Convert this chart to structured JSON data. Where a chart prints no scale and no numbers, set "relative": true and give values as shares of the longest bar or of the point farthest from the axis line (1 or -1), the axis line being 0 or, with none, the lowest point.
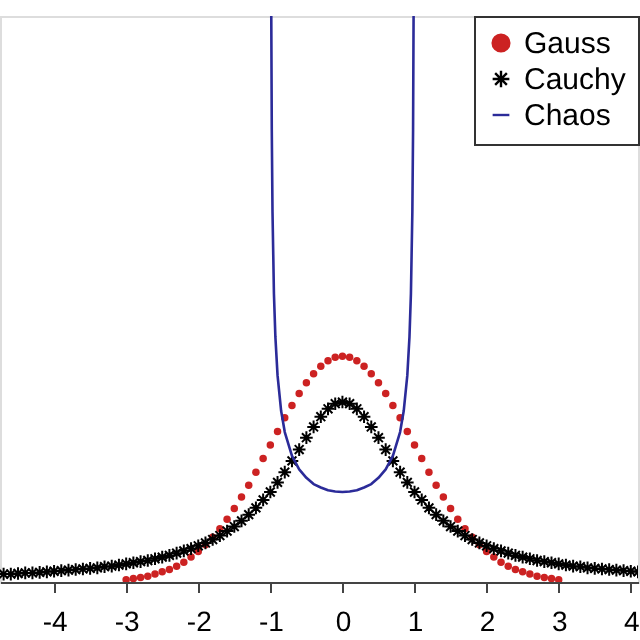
{
  "chart_data": {
    "type": "scatter",
    "relative": true,
    "xlim": [
      -4.75,
      4.1
    ],
    "xticks": [
      -4,
      -3,
      -2,
      -1,
      0,
      1,
      2,
      3,
      4
    ],
    "legend": "top right",
    "grid": false,
    "series": [
      {
        "name": "Gauss",
        "color": "#cc2222",
        "marker": "circle",
        "x": [
          -3.0,
          -2.9,
          -2.8,
          -2.7,
          -2.6,
          -2.5,
          -2.4,
          -2.3,
          -2.2,
          -2.1,
          -2.0,
          -1.9,
          -1.8,
          -1.7,
          -1.6,
          -1.5,
          -1.4,
          -1.3,
          -1.2,
          -1.1,
          -1.0,
          -0.9,
          -0.8,
          -0.7,
          -0.6,
          -0.5,
          -0.4,
          -0.3,
          -0.2,
          -0.1,
          0.0,
          0.1,
          0.2,
          0.3,
          0.4,
          0.5,
          0.6,
          0.7,
          0.8,
          0.9,
          1.0,
          1.1,
          1.2,
          1.3,
          1.4,
          1.5,
          1.6,
          1.7,
          1.8,
          1.9,
          2.0,
          2.1,
          2.2,
          2.3,
          2.4,
          2.5,
          2.6,
          2.7,
          2.8,
          2.9,
          3.0
        ],
        "values": [
          0.004,
          0.006,
          0.008,
          0.01,
          0.014,
          0.018,
          0.022,
          0.028,
          0.035,
          0.044,
          0.054,
          0.066,
          0.079,
          0.094,
          0.111,
          0.13,
          0.15,
          0.171,
          0.194,
          0.218,
          0.242,
          0.266,
          0.29,
          0.312,
          0.333,
          0.352,
          0.368,
          0.381,
          0.391,
          0.397,
          0.399,
          0.397,
          0.391,
          0.381,
          0.368,
          0.352,
          0.333,
          0.312,
          0.29,
          0.266,
          0.242,
          0.218,
          0.194,
          0.171,
          0.15,
          0.13,
          0.111,
          0.094,
          0.079,
          0.066,
          0.054,
          0.044,
          0.035,
          0.028,
          0.022,
          0.018,
          0.014,
          0.01,
          0.008,
          0.006,
          0.004
        ]
      },
      {
        "name": "Cauchy",
        "color": "#000000",
        "marker": "cross",
        "x": [
          -4.7,
          -4.6,
          -4.5,
          -4.4,
          -4.3,
          -4.2,
          -4.1,
          -4.0,
          -3.9,
          -3.8,
          -3.7,
          -3.6,
          -3.5,
          -3.4,
          -3.3,
          -3.2,
          -3.1,
          -3.0,
          -2.9,
          -2.8,
          -2.7,
          -2.6,
          -2.5,
          -2.4,
          -2.3,
          -2.2,
          -2.1,
          -2.0,
          -1.9,
          -1.8,
          -1.7,
          -1.6,
          -1.5,
          -1.4,
          -1.3,
          -1.2,
          -1.1,
          -1.0,
          -0.9,
          -0.8,
          -0.7,
          -0.6,
          -0.5,
          -0.4,
          -0.3,
          -0.2,
          -0.1,
          0.0,
          0.1,
          0.2,
          0.3,
          0.4,
          0.5,
          0.6,
          0.7,
          0.8,
          0.9,
          1.0,
          1.1,
          1.2,
          1.3,
          1.4,
          1.5,
          1.6,
          1.7,
          1.8,
          1.9,
          2.0,
          2.1,
          2.2,
          2.3,
          2.4,
          2.5,
          2.6,
          2.7,
          2.8,
          2.9,
          3.0,
          3.1,
          3.2,
          3.3,
          3.4,
          3.5,
          3.6,
          3.7,
          3.8,
          3.9,
          4.0,
          4.1
        ],
        "values": [
          0.014,
          0.014,
          0.015,
          0.016,
          0.016,
          0.017,
          0.018,
          0.019,
          0.02,
          0.021,
          0.022,
          0.023,
          0.024,
          0.025,
          0.027,
          0.028,
          0.03,
          0.032,
          0.034,
          0.036,
          0.038,
          0.041,
          0.044,
          0.047,
          0.051,
          0.055,
          0.059,
          0.064,
          0.069,
          0.075,
          0.082,
          0.09,
          0.098,
          0.108,
          0.119,
          0.131,
          0.145,
          0.159,
          0.176,
          0.194,
          0.214,
          0.234,
          0.255,
          0.274,
          0.292,
          0.306,
          0.315,
          0.318,
          0.315,
          0.306,
          0.292,
          0.274,
          0.255,
          0.234,
          0.214,
          0.194,
          0.176,
          0.159,
          0.145,
          0.131,
          0.119,
          0.108,
          0.098,
          0.09,
          0.082,
          0.075,
          0.069,
          0.064,
          0.059,
          0.055,
          0.051,
          0.047,
          0.044,
          0.041,
          0.038,
          0.036,
          0.034,
          0.032,
          0.03,
          0.028,
          0.027,
          0.025,
          0.024,
          0.023,
          0.022,
          0.021,
          0.02,
          0.019,
          0.018
        ]
      },
      {
        "name": "Chaos",
        "color": "#2b2b99",
        "type": "line",
        "marker": "none",
        "line_style": "solid",
        "x": [
          -0.987,
          -0.98,
          -0.97,
          -0.95,
          -0.93,
          -0.9,
          -0.85,
          -0.8,
          -0.7,
          -0.6,
          -0.5,
          -0.4,
          -0.3,
          -0.2,
          -0.1,
          0.0,
          0.1,
          0.2,
          0.3,
          0.4,
          0.5,
          0.6,
          0.7,
          0.8,
          0.85,
          0.9,
          0.93,
          0.95,
          0.97,
          0.98,
          0.987
        ],
        "values": [
          1.0,
          0.799,
          0.654,
          0.509,
          0.433,
          0.365,
          0.302,
          0.265,
          0.223,
          0.199,
          0.184,
          0.173,
          0.167,
          0.162,
          0.16,
          0.159,
          0.16,
          0.162,
          0.167,
          0.173,
          0.184,
          0.199,
          0.223,
          0.265,
          0.302,
          0.365,
          0.433,
          0.509,
          0.654,
          0.799,
          1.0
        ]
      }
    ]
  }
}
